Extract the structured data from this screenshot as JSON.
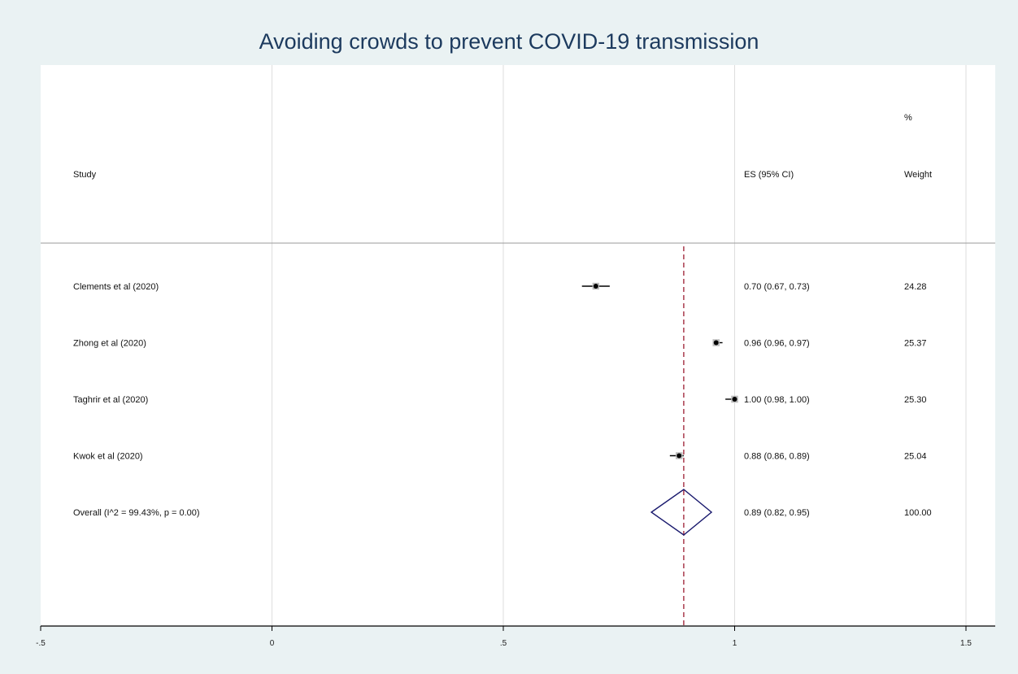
{
  "chart_data": {
    "type": "forest",
    "title": "Avoiding crowds to prevent COVID-19 transmission",
    "headers": {
      "study": "Study",
      "es": "ES (95% CI)",
      "weight_line1": "%",
      "weight_line2": "Weight"
    },
    "studies": [
      {
        "label": "Clements et al (2020)",
        "es": 0.7,
        "lo": 0.67,
        "hi": 0.73,
        "es_text": "0.70 (0.67, 0.73)",
        "weight": 24.28,
        "weight_text": "24.28"
      },
      {
        "label": "Zhong et al (2020)",
        "es": 0.96,
        "lo": 0.96,
        "hi": 0.97,
        "es_text": "0.96 (0.96, 0.97)",
        "weight": 25.37,
        "weight_text": "25.37"
      },
      {
        "label": "Taghrir et al (2020)",
        "es": 1.0,
        "lo": 0.98,
        "hi": 1.0,
        "es_text": "1.00 (0.98, 1.00)",
        "weight": 25.3,
        "weight_text": "25.30"
      },
      {
        "label": "Kwok et al (2020)",
        "es": 0.88,
        "lo": 0.86,
        "hi": 0.89,
        "es_text": "0.88 (0.86, 0.89)",
        "weight": 25.04,
        "weight_text": "25.04"
      }
    ],
    "overall": {
      "label": "Overall  (I^2 = 99.43%, p = 0.00)",
      "es": 0.89,
      "lo": 0.82,
      "hi": 0.95,
      "es_text": "0.89 (0.82, 0.95)",
      "weight_text": "100.00"
    },
    "x_ticks": [
      {
        "value": -0.5,
        "label": "-.5"
      },
      {
        "value": 0,
        "label": "0"
      },
      {
        "value": 0.5,
        "label": ".5"
      },
      {
        "value": 1,
        "label": "1"
      },
      {
        "value": 1.5,
        "label": "1.5"
      }
    ],
    "xlim": [
      -0.5,
      1.5
    ],
    "grid": true,
    "colors": {
      "background": "#eaf2f3",
      "plot_area": "#ffffff",
      "title": "#1c3a5e",
      "diamond": "#1a1a6e",
      "overall_line": "#9b1b30",
      "grid": "#dedede"
    }
  }
}
